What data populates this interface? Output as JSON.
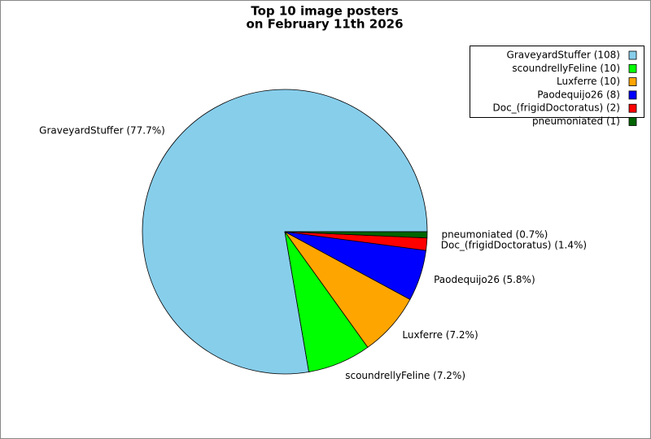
{
  "chart_data": {
    "type": "pie",
    "title": [
      "Top 10 image posters",
      "on February 11th 2026"
    ],
    "categories": [
      "GraveyardStuffer (108)",
      "scoundrellyFeline (10)",
      "Luxferre (10)",
      "Paodequijo26 (8)",
      "Doc_(frigidDoctoratus) (2)",
      "pneumoniated (1)"
    ],
    "values": [
      77.7,
      7.2,
      7.2,
      5.8,
      1.4,
      0.7
    ],
    "value_labels": [
      "GraveyardStuffer (77.7%)",
      "scoundrellyFeline (7.2%)",
      "Luxferre (7.2%)",
      "Paodequijo26 (5.8%)",
      "Doc_(frigidDoctoratus) (1.4%)",
      "pneumoniated (0.7%)"
    ],
    "colors": [
      "#87ceeb",
      "#00ff00",
      "#ffa500",
      "#0000ff",
      "#ff0000",
      "#006400"
    ],
    "legend": "upper right"
  }
}
